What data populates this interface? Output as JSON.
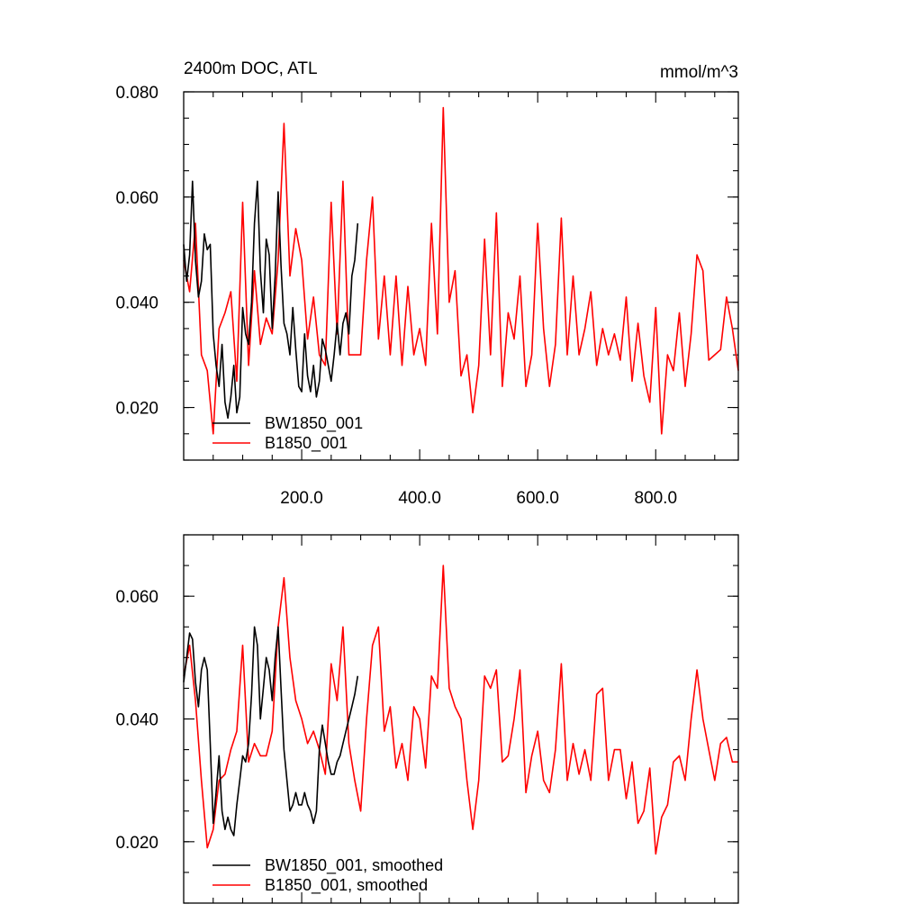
{
  "colors": {
    "bw": "#000000",
    "b": "#ff0000",
    "background": "#ffffff"
  },
  "chart_data": [
    {
      "type": "line",
      "title": "2400m DOC, ATL",
      "units": "mmol/m^3",
      "xlim": [
        0,
        940
      ],
      "ylim": [
        0.01,
        0.08
      ],
      "yticks": [
        "0.020",
        "0.040",
        "0.060",
        "0.080"
      ],
      "xticks": [
        "200.0",
        "400.0",
        "600.0",
        "800.0"
      ],
      "grid": false,
      "legend_position": "bottom-left",
      "series": [
        {
          "name": "BW1850_001",
          "color": "#000000",
          "x": [
            0,
            5,
            10,
            15,
            20,
            25,
            30,
            35,
            40,
            45,
            50,
            55,
            60,
            65,
            70,
            75,
            80,
            85,
            90,
            95,
            100,
            105,
            110,
            115,
            120,
            125,
            130,
            135,
            140,
            145,
            150,
            155,
            160,
            165,
            170,
            175,
            180,
            185,
            190,
            195,
            200,
            205,
            210,
            215,
            220,
            225,
            230,
            235,
            240,
            245,
            250,
            255,
            260,
            265,
            270,
            275,
            280,
            285,
            290,
            295
          ],
          "values": [
            0.051,
            0.044,
            0.049,
            0.063,
            0.048,
            0.041,
            0.044,
            0.053,
            0.05,
            0.051,
            0.034,
            0.028,
            0.024,
            0.032,
            0.021,
            0.018,
            0.022,
            0.028,
            0.019,
            0.022,
            0.039,
            0.034,
            0.032,
            0.04,
            0.055,
            0.063,
            0.046,
            0.038,
            0.052,
            0.049,
            0.035,
            0.045,
            0.061,
            0.047,
            0.036,
            0.034,
            0.03,
            0.039,
            0.031,
            0.024,
            0.023,
            0.034,
            0.026,
            0.023,
            0.028,
            0.022,
            0.025,
            0.033,
            0.031,
            0.028,
            0.025,
            0.03,
            0.036,
            0.03,
            0.036,
            0.038,
            0.034,
            0.045,
            0.048,
            0.055
          ]
        },
        {
          "name": "B1850_001",
          "color": "#ff0000",
          "x": [
            0,
            10,
            20,
            30,
            40,
            50,
            60,
            70,
            80,
            90,
            100,
            110,
            120,
            130,
            140,
            150,
            160,
            170,
            180,
            190,
            200,
            210,
            220,
            230,
            240,
            250,
            260,
            270,
            280,
            290,
            300,
            310,
            320,
            330,
            340,
            350,
            360,
            370,
            380,
            390,
            400,
            410,
            420,
            430,
            440,
            450,
            460,
            470,
            480,
            490,
            500,
            510,
            520,
            530,
            540,
            550,
            560,
            570,
            580,
            590,
            600,
            610,
            620,
            630,
            640,
            650,
            660,
            670,
            680,
            690,
            700,
            710,
            720,
            730,
            740,
            750,
            760,
            770,
            780,
            790,
            800,
            810,
            820,
            830,
            840,
            850,
            860,
            870,
            880,
            890,
            900,
            910,
            920,
            930,
            940
          ],
          "values": [
            0.048,
            0.042,
            0.055,
            0.03,
            0.027,
            0.015,
            0.035,
            0.038,
            0.042,
            0.025,
            0.059,
            0.028,
            0.046,
            0.032,
            0.037,
            0.034,
            0.048,
            0.074,
            0.045,
            0.054,
            0.048,
            0.033,
            0.041,
            0.03,
            0.028,
            0.059,
            0.034,
            0.063,
            0.03,
            0.03,
            0.03,
            0.048,
            0.06,
            0.033,
            0.045,
            0.03,
            0.045,
            0.028,
            0.043,
            0.03,
            0.035,
            0.028,
            0.055,
            0.034,
            0.077,
            0.04,
            0.046,
            0.026,
            0.03,
            0.019,
            0.028,
            0.052,
            0.03,
            0.057,
            0.024,
            0.038,
            0.033,
            0.045,
            0.024,
            0.03,
            0.055,
            0.035,
            0.024,
            0.032,
            0.056,
            0.03,
            0.045,
            0.03,
            0.035,
            0.042,
            0.028,
            0.035,
            0.03,
            0.034,
            0.029,
            0.041,
            0.025,
            0.036,
            0.026,
            0.021,
            0.039,
            0.015,
            0.03,
            0.027,
            0.038,
            0.024,
            0.034,
            0.049,
            0.046,
            0.029,
            0.03,
            0.031,
            0.041,
            0.035,
            0.027
          ]
        }
      ]
    },
    {
      "type": "line",
      "title": "",
      "xlim": [
        0,
        940
      ],
      "ylim": [
        0.01,
        0.07
      ],
      "yticks": [
        "0.020",
        "0.040",
        "0.060"
      ],
      "xticks": [],
      "grid": false,
      "legend_position": "bottom-left",
      "series": [
        {
          "name": "BW1850_001, smoothed",
          "color": "#000000",
          "x": [
            0,
            5,
            10,
            15,
            20,
            25,
            30,
            35,
            40,
            45,
            50,
            55,
            60,
            65,
            70,
            75,
            80,
            85,
            90,
            95,
            100,
            105,
            110,
            115,
            120,
            125,
            130,
            135,
            140,
            145,
            150,
            155,
            160,
            165,
            170,
            175,
            180,
            185,
            190,
            195,
            200,
            205,
            210,
            215,
            220,
            225,
            230,
            235,
            240,
            245,
            250,
            255,
            260,
            265,
            270,
            275,
            280,
            285,
            290,
            295
          ],
          "values": [
            0.046,
            0.05,
            0.054,
            0.053,
            0.046,
            0.042,
            0.048,
            0.05,
            0.048,
            0.036,
            0.023,
            0.028,
            0.034,
            0.025,
            0.022,
            0.024,
            0.022,
            0.021,
            0.026,
            0.03,
            0.034,
            0.033,
            0.036,
            0.044,
            0.055,
            0.052,
            0.04,
            0.045,
            0.05,
            0.048,
            0.043,
            0.05,
            0.055,
            0.045,
            0.035,
            0.03,
            0.025,
            0.026,
            0.028,
            0.026,
            0.026,
            0.028,
            0.026,
            0.025,
            0.023,
            0.025,
            0.035,
            0.039,
            0.036,
            0.033,
            0.031,
            0.031,
            0.033,
            0.034,
            0.036,
            0.038,
            0.04,
            0.042,
            0.044,
            0.047
          ]
        },
        {
          "name": "B1850_001, smoothed",
          "color": "#ff0000",
          "x": [
            0,
            10,
            20,
            30,
            40,
            50,
            60,
            70,
            80,
            90,
            100,
            110,
            120,
            130,
            140,
            150,
            160,
            170,
            180,
            190,
            200,
            210,
            220,
            230,
            240,
            250,
            260,
            270,
            280,
            290,
            300,
            310,
            320,
            330,
            340,
            350,
            360,
            370,
            380,
            390,
            400,
            410,
            420,
            430,
            440,
            450,
            460,
            470,
            480,
            490,
            500,
            510,
            520,
            530,
            540,
            550,
            560,
            570,
            580,
            590,
            600,
            610,
            620,
            630,
            640,
            650,
            660,
            670,
            680,
            690,
            700,
            710,
            720,
            730,
            740,
            750,
            760,
            770,
            780,
            790,
            800,
            810,
            820,
            830,
            840,
            850,
            860,
            870,
            880,
            890,
            900,
            910,
            920,
            930,
            940
          ],
          "values": [
            0.047,
            0.052,
            0.043,
            0.03,
            0.019,
            0.022,
            0.03,
            0.031,
            0.035,
            0.038,
            0.052,
            0.033,
            0.036,
            0.034,
            0.034,
            0.038,
            0.055,
            0.063,
            0.05,
            0.043,
            0.04,
            0.036,
            0.038,
            0.035,
            0.031,
            0.049,
            0.043,
            0.055,
            0.036,
            0.03,
            0.025,
            0.04,
            0.052,
            0.055,
            0.038,
            0.042,
            0.032,
            0.036,
            0.03,
            0.042,
            0.04,
            0.032,
            0.047,
            0.045,
            0.065,
            0.045,
            0.042,
            0.04,
            0.03,
            0.022,
            0.03,
            0.047,
            0.045,
            0.048,
            0.033,
            0.034,
            0.04,
            0.048,
            0.028,
            0.034,
            0.038,
            0.03,
            0.028,
            0.035,
            0.049,
            0.03,
            0.036,
            0.031,
            0.035,
            0.03,
            0.044,
            0.045,
            0.03,
            0.035,
            0.035,
            0.027,
            0.033,
            0.023,
            0.025,
            0.032,
            0.018,
            0.024,
            0.026,
            0.033,
            0.034,
            0.03,
            0.04,
            0.048,
            0.04,
            0.035,
            0.03,
            0.036,
            0.037,
            0.033,
            0.033
          ]
        }
      ]
    }
  ]
}
